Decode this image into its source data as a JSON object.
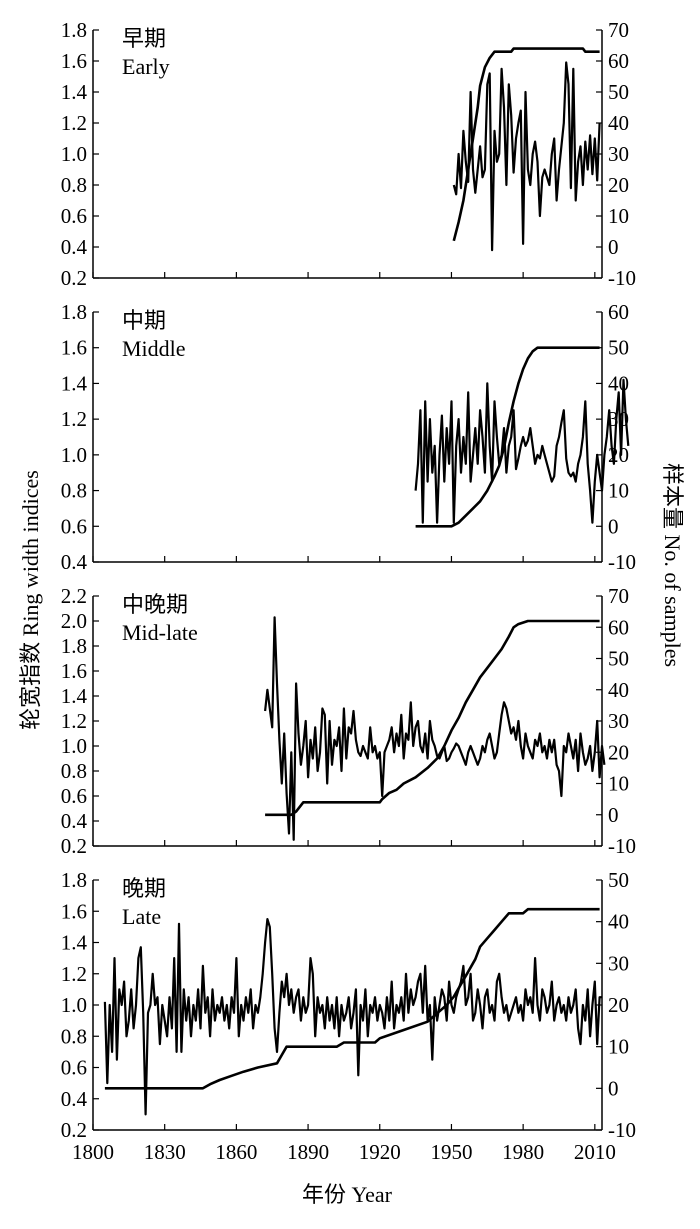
{
  "axis_titles": {
    "left": "轮宽指数  Ring width indices",
    "right": "样本量  No. of samples",
    "bottom": "年份  Year"
  },
  "x_axis": {
    "range": [
      1800,
      2013
    ],
    "ticks": [
      1800,
      1830,
      1860,
      1890,
      1920,
      1950,
      1980,
      2010
    ],
    "tick_labels": [
      "1800",
      "1830",
      "1860",
      "1890",
      "1920",
      "1950",
      "1980",
      "2010"
    ]
  },
  "chart_data": [
    {
      "type": "line",
      "panel": "early",
      "label_zh": "早期",
      "label_en": "Early",
      "left_axis": {
        "range": [
          0.2,
          1.8
        ],
        "ticks": [
          0.2,
          0.4,
          0.6,
          0.8,
          1.0,
          1.2,
          1.4,
          1.6,
          1.8
        ],
        "tick_labels": [
          "0.2",
          "0.4",
          "0.6",
          "0.8",
          "1.0",
          "1.2",
          "1.4",
          "1.6",
          "1.8"
        ]
      },
      "right_axis": {
        "range": [
          -10,
          70
        ],
        "ticks": [
          -10,
          0,
          10,
          20,
          30,
          40,
          50,
          60,
          70
        ],
        "tick_labels": [
          "-10",
          "0",
          "10",
          "20",
          "30",
          "40",
          "50",
          "60",
          "70"
        ]
      },
      "index_series": {
        "start_year": 1951,
        "values": [
          0.8,
          0.74,
          1.0,
          0.78,
          1.15,
          0.95,
          0.82,
          1.4,
          0.9,
          0.75,
          0.9,
          1.05,
          0.85,
          0.9,
          1.45,
          1.52,
          0.38,
          1.15,
          0.95,
          1.0,
          1.55,
          1.3,
          0.8,
          1.45,
          1.25,
          0.88,
          1.1,
          1.2,
          1.28,
          0.42,
          1.4,
          0.9,
          0.8,
          1.0,
          1.08,
          0.95,
          0.6,
          0.85,
          0.9,
          0.85,
          0.8,
          1.0,
          1.1,
          0.7,
          0.9,
          1.05,
          1.2,
          1.59,
          1.45,
          0.78,
          1.55,
          0.7,
          0.95,
          1.05,
          0.8,
          1.08,
          0.9,
          1.12,
          0.87,
          1.1,
          0.83,
          1.2
        ]
      },
      "sample_series": {
        "points": [
          [
            1951,
            2
          ],
          [
            1953,
            8
          ],
          [
            1955,
            15
          ],
          [
            1957,
            25
          ],
          [
            1959,
            35
          ],
          [
            1961,
            45
          ],
          [
            1962,
            52
          ],
          [
            1964,
            58
          ],
          [
            1966,
            61
          ],
          [
            1968,
            63
          ],
          [
            1975,
            63
          ],
          [
            1976,
            64
          ],
          [
            2005,
            64
          ],
          [
            2006,
            63
          ],
          [
            2012,
            63
          ]
        ]
      }
    },
    {
      "type": "line",
      "panel": "middle",
      "label_zh": "中期",
      "label_en": "Middle",
      "left_axis": {
        "range": [
          0.4,
          1.8
        ],
        "ticks": [
          0.4,
          0.6,
          0.8,
          1.0,
          1.2,
          1.4,
          1.6,
          1.8
        ],
        "tick_labels": [
          "0.4",
          "0.6",
          "0.8",
          "1.0",
          "1.2",
          "1.4",
          "1.6",
          "1.8"
        ]
      },
      "right_axis": {
        "range": [
          -10,
          60
        ],
        "ticks": [
          -10,
          0,
          10,
          20,
          30,
          40,
          50,
          60
        ],
        "tick_labels": [
          "-10",
          "0",
          "10",
          "20",
          "30",
          "40",
          "50",
          "60"
        ]
      },
      "index_series": {
        "start_year": 1935,
        "values": [
          0.8,
          0.95,
          1.25,
          0.62,
          1.3,
          0.85,
          1.2,
          0.9,
          1.05,
          0.62,
          1.0,
          1.22,
          0.85,
          1.15,
          0.95,
          1.3,
          0.62,
          1.05,
          1.2,
          0.9,
          1.1,
          0.95,
          1.35,
          0.85,
          1.0,
          1.15,
          0.95,
          1.25,
          1.1,
          0.9,
          1.4,
          1.05,
          0.85,
          1.3,
          1.1,
          0.95,
          1.0,
          1.15,
          0.9,
          1.05,
          1.1,
          1.25,
          0.92,
          0.98,
          1.05,
          1.1,
          1.05,
          1.08,
          1.15,
          1.05,
          0.95,
          1.0,
          0.98,
          1.05,
          1.0,
          0.95,
          0.9,
          0.85,
          0.88,
          1.05,
          1.1,
          1.18,
          1.25,
          0.98,
          0.9,
          0.88,
          0.9,
          0.85,
          0.95,
          1.0,
          1.1,
          1.3,
          0.95,
          0.8,
          0.62,
          0.85,
          1.0,
          0.9,
          0.8,
          1.0,
          1.1,
          1.25,
          1.05,
          0.95,
          1.2,
          1.35,
          1.0,
          1.42,
          1.2,
          1.05
        ]
      },
      "sample_series": {
        "points": [
          [
            1935,
            0
          ],
          [
            1950,
            0
          ],
          [
            1953,
            1
          ],
          [
            1956,
            3
          ],
          [
            1959,
            5
          ],
          [
            1962,
            7
          ],
          [
            1965,
            10
          ],
          [
            1968,
            14
          ],
          [
            1970,
            17
          ],
          [
            1972,
            22
          ],
          [
            1974,
            29
          ],
          [
            1976,
            35
          ],
          [
            1978,
            40
          ],
          [
            1980,
            44
          ],
          [
            1982,
            47
          ],
          [
            1984,
            49
          ],
          [
            1986,
            50
          ],
          [
            2012,
            50
          ]
        ]
      }
    },
    {
      "type": "line",
      "panel": "mid-late",
      "label_zh": "中晚期",
      "label_en": "Mid-late",
      "left_axis": {
        "range": [
          0.2,
          2.2
        ],
        "ticks": [
          0.2,
          0.4,
          0.6,
          0.8,
          1.0,
          1.2,
          1.4,
          1.6,
          1.8,
          2.0,
          2.2
        ],
        "tick_labels": [
          "0.2",
          "0.4",
          "0.6",
          "0.8",
          "1.0",
          "1.2",
          "1.4",
          "1.6",
          "1.8",
          "2.0",
          "2.2"
        ]
      },
      "right_axis": {
        "range": [
          -10,
          70
        ],
        "ticks": [
          -10,
          0,
          10,
          20,
          30,
          40,
          50,
          60,
          70
        ],
        "tick_labels": [
          "-10",
          "0",
          "10",
          "20",
          "30",
          "40",
          "50",
          "60",
          "70"
        ]
      },
      "index_series": {
        "start_year": 1872,
        "values": [
          1.28,
          1.45,
          1.3,
          1.15,
          2.03,
          1.5,
          1.05,
          0.7,
          1.1,
          0.62,
          0.3,
          0.95,
          0.25,
          1.5,
          1.1,
          0.85,
          1.0,
          1.2,
          0.75,
          1.05,
          0.9,
          1.15,
          0.8,
          0.95,
          1.3,
          1.25,
          0.7,
          1.2,
          0.85,
          1.05,
          1.0,
          1.15,
          0.8,
          1.3,
          0.9,
          1.15,
          1.1,
          1.28,
          1.05,
          0.95,
          0.92,
          1.0,
          0.95,
          0.9,
          1.15,
          0.95,
          1.0,
          0.9,
          0.95,
          0.6,
          0.95,
          1.0,
          1.05,
          1.15,
          0.95,
          1.1,
          1.0,
          1.25,
          0.9,
          1.1,
          1.05,
          1.35,
          1.0,
          1.15,
          1.2,
          1.0,
          0.95,
          1.1,
          0.9,
          1.2,
          1.05,
          1.0,
          0.92,
          0.9,
          0.95,
          1.0,
          0.88,
          0.9,
          0.95,
          0.98,
          1.02,
          1.0,
          0.95,
          0.9,
          0.85,
          0.95,
          1.0,
          0.95,
          0.9,
          0.85,
          0.9,
          1.0,
          0.95,
          1.05,
          1.1,
          1.0,
          0.9,
          0.95,
          1.1,
          1.25,
          1.35,
          1.3,
          1.2,
          1.1,
          1.15,
          1.05,
          1.2,
          1.0,
          0.9,
          1.1,
          1.0,
          0.95,
          0.9,
          1.05,
          1.0,
          1.1,
          0.95,
          1.0,
          0.9,
          1.05,
          0.95,
          1.05,
          0.85,
          0.8,
          0.6,
          1.0,
          0.95,
          1.1,
          1.0,
          0.9,
          1.05,
          0.8,
          1.1,
          0.95,
          0.85,
          0.9,
          1.0,
          0.8,
          0.95,
          1.2,
          0.75,
          1.0,
          0.85
        ]
      },
      "sample_series": {
        "points": [
          [
            1872,
            0
          ],
          [
            1883,
            0
          ],
          [
            1885,
            1
          ],
          [
            1888,
            4
          ],
          [
            1920,
            4
          ],
          [
            1921,
            5
          ],
          [
            1924,
            7
          ],
          [
            1927,
            8
          ],
          [
            1930,
            10
          ],
          [
            1935,
            12
          ],
          [
            1940,
            15
          ],
          [
            1944,
            18
          ],
          [
            1947,
            22
          ],
          [
            1950,
            27
          ],
          [
            1953,
            31
          ],
          [
            1956,
            36
          ],
          [
            1959,
            40
          ],
          [
            1962,
            44
          ],
          [
            1965,
            47
          ],
          [
            1968,
            50
          ],
          [
            1971,
            53
          ],
          [
            1974,
            57
          ],
          [
            1976,
            60
          ],
          [
            1978,
            61
          ],
          [
            1982,
            62
          ],
          [
            2012,
            62
          ]
        ]
      }
    },
    {
      "type": "line",
      "panel": "late",
      "label_zh": "晚期",
      "label_en": "Late",
      "left_axis": {
        "range": [
          0.2,
          1.8
        ],
        "ticks": [
          0.2,
          0.4,
          0.6,
          0.8,
          1.0,
          1.2,
          1.4,
          1.6,
          1.8
        ],
        "tick_labels": [
          "0.2",
          "0.4",
          "0.6",
          "0.8",
          "1.0",
          "1.2",
          "1.4",
          "1.6",
          "1.8"
        ]
      },
      "right_axis": {
        "range": [
          -10,
          50
        ],
        "ticks": [
          -10,
          0,
          10,
          20,
          30,
          40,
          50
        ],
        "tick_labels": [
          "-10",
          "0",
          "10",
          "20",
          "30",
          "40",
          "50"
        ]
      },
      "index_series": {
        "start_year": 1805,
        "values": [
          1.02,
          0.5,
          1.0,
          0.7,
          1.3,
          0.65,
          1.1,
          1.0,
          1.15,
          0.8,
          0.9,
          1.1,
          0.85,
          1.0,
          1.3,
          1.37,
          0.95,
          0.3,
          0.95,
          1.0,
          1.2,
          1.0,
          1.05,
          0.75,
          1.0,
          0.9,
          0.8,
          1.05,
          0.85,
          1.3,
          0.7,
          1.52,
          0.7,
          1.1,
          0.9,
          1.05,
          0.8,
          1.0,
          0.9,
          1.1,
          0.85,
          1.25,
          0.95,
          1.05,
          0.8,
          1.1,
          0.9,
          1.0,
          0.95,
          1.05,
          0.9,
          1.0,
          0.85,
          1.05,
          0.95,
          1.3,
          0.8,
          1.0,
          0.9,
          1.05,
          0.95,
          1.1,
          0.85,
          1.0,
          0.95,
          1.05,
          1.2,
          1.4,
          1.55,
          1.5,
          1.2,
          0.85,
          0.7,
          0.95,
          1.15,
          1.05,
          1.2,
          1.0,
          1.1,
          0.95,
          1.05,
          1.1,
          0.9,
          1.05,
          0.95,
          1.0,
          1.3,
          1.2,
          0.8,
          1.05,
          0.95,
          1.0,
          0.85,
          1.05,
          0.9,
          1.0,
          0.85,
          1.05,
          0.8,
          1.0,
          0.9,
          0.95,
          1.05,
          0.85,
          0.95,
          1.1,
          0.55,
          1.0,
          0.9,
          1.1,
          0.8,
          1.0,
          0.95,
          1.05,
          0.9,
          1.0,
          0.95,
          0.85,
          1.05,
          0.9,
          1.15,
          0.85,
          1.0,
          0.95,
          1.05,
          0.9,
          1.2,
          0.95,
          1.1,
          1.0,
          1.05,
          1.15,
          1.2,
          0.95,
          1.25,
          0.9,
          1.0,
          0.65,
          1.05,
          0.9,
          1.0,
          1.1,
          1.05,
          0.9,
          1.15,
          1.0,
          0.95,
          1.05,
          1.1,
          1.15,
          1.25,
          1.0,
          1.05,
          1.2,
          0.9,
          0.95,
          1.1,
          1.0,
          0.85,
          1.05,
          1.1,
          0.95,
          1.0,
          0.9,
          1.15,
          1.2,
          1.05,
          0.95,
          1.0,
          0.9,
          0.95,
          1.0,
          1.05,
          0.95,
          1.0,
          0.9,
          1.1,
          1.0,
          1.05,
          0.95,
          1.3,
          1.0,
          0.9,
          1.1,
          1.05,
          0.95,
          1.0,
          1.15,
          0.9,
          1.0,
          1.05,
          0.95,
          1.0,
          0.9,
          1.05,
          0.95,
          1.0,
          1.1,
          0.85,
          0.75,
          1.0,
          0.9,
          1.1,
          0.8,
          1.0,
          1.15,
          0.75,
          1.05,
          1.05
        ]
      },
      "sample_series": {
        "points": [
          [
            1805,
            0
          ],
          [
            1846,
            0
          ],
          [
            1849,
            1
          ],
          [
            1853,
            2
          ],
          [
            1858,
            3
          ],
          [
            1863,
            4
          ],
          [
            1869,
            5
          ],
          [
            1877,
            6
          ],
          [
            1879,
            8
          ],
          [
            1881,
            10
          ],
          [
            1888,
            10
          ],
          [
            1902,
            10
          ],
          [
            1905,
            11
          ],
          [
            1918,
            11
          ],
          [
            1920,
            12
          ],
          [
            1930,
            14
          ],
          [
            1940,
            16
          ],
          [
            1944,
            18
          ],
          [
            1948,
            20
          ],
          [
            1951,
            22
          ],
          [
            1954,
            25
          ],
          [
            1957,
            28
          ],
          [
            1960,
            31
          ],
          [
            1962,
            34
          ],
          [
            1965,
            36
          ],
          [
            1968,
            38
          ],
          [
            1971,
            40
          ],
          [
            1974,
            42
          ],
          [
            1980,
            42
          ],
          [
            1982,
            43
          ],
          [
            2012,
            43
          ]
        ]
      }
    }
  ]
}
